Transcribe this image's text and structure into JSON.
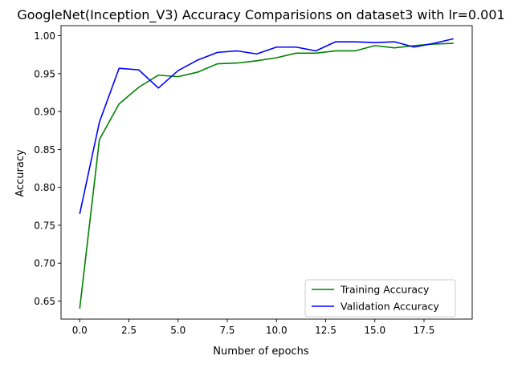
{
  "chart_data": {
    "type": "line",
    "title": "GoogleNet(Inception_V3) Accuracy Comparisions on dataset3 with lr=0.001",
    "xlabel": "Number of epochs",
    "ylabel": "Accuracy",
    "xlim": [
      -0.95,
      19.95
    ],
    "ylim": [
      0.6262,
      1.0133
    ],
    "xticks": [
      0.0,
      2.5,
      5.0,
      7.5,
      10.0,
      12.5,
      15.0,
      17.5
    ],
    "xtick_labels": [
      "0.0",
      "2.5",
      "5.0",
      "7.5",
      "10.0",
      "12.5",
      "15.0",
      "17.5"
    ],
    "yticks": [
      0.65,
      0.7,
      0.75,
      0.8,
      0.85,
      0.9,
      0.95,
      1.0
    ],
    "ytick_labels": [
      "0.65",
      "0.70",
      "0.75",
      "0.80",
      "0.85",
      "0.90",
      "0.95",
      "1.00"
    ],
    "grid": false,
    "legend_position": "lower-right",
    "x": [
      0,
      1,
      2,
      3,
      4,
      5,
      6,
      7,
      8,
      9,
      10,
      11,
      12,
      13,
      14,
      15,
      16,
      17,
      18,
      19
    ],
    "series": [
      {
        "name": "Training Accuracy",
        "color": "#008000",
        "values": [
          0.64,
          0.863,
          0.91,
          0.932,
          0.948,
          0.946,
          0.952,
          0.963,
          0.964,
          0.967,
          0.971,
          0.977,
          0.977,
          0.98,
          0.98,
          0.987,
          0.984,
          0.987,
          0.989,
          0.99
        ]
      },
      {
        "name": "Validation Accuracy",
        "color": "#0000ff",
        "values": [
          0.765,
          0.886,
          0.957,
          0.955,
          0.931,
          0.954,
          0.968,
          0.978,
          0.98,
          0.976,
          0.985,
          0.985,
          0.98,
          0.992,
          0.992,
          0.991,
          0.992,
          0.985,
          0.99,
          0.996
        ]
      }
    ]
  }
}
